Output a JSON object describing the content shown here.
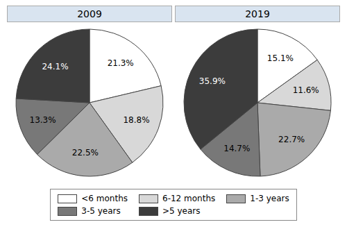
{
  "chart_data": [
    {
      "type": "pie",
      "title": "2009",
      "categories": [
        "<6 months",
        "6-12 months",
        "1-3 years",
        "3-5 years",
        ">5 years"
      ],
      "values": [
        21.3,
        18.8,
        22.5,
        13.3,
        24.1
      ],
      "value_labels": [
        "21.3%",
        "18.8%",
        "22.5%",
        "13.3%",
        "24.1%"
      ],
      "colors": [
        "#ffffff",
        "#d8d8d8",
        "#aaaaaa",
        "#787878",
        "#3c3c3c"
      ],
      "data_labels": true,
      "legend": "bottom"
    },
    {
      "type": "pie",
      "title": "2019",
      "categories": [
        "<6 months",
        "6-12 months",
        "1-3 years",
        "3-5 years",
        ">5 years"
      ],
      "values": [
        15.1,
        11.6,
        22.7,
        14.7,
        35.9
      ],
      "value_labels": [
        "15.1%",
        "11.6%",
        "22.7%",
        "14.7%",
        "35.9%"
      ],
      "colors": [
        "#ffffff",
        "#d8d8d8",
        "#aaaaaa",
        "#787878",
        "#3c3c3c"
      ],
      "data_labels": true,
      "legend": "bottom"
    }
  ]
}
